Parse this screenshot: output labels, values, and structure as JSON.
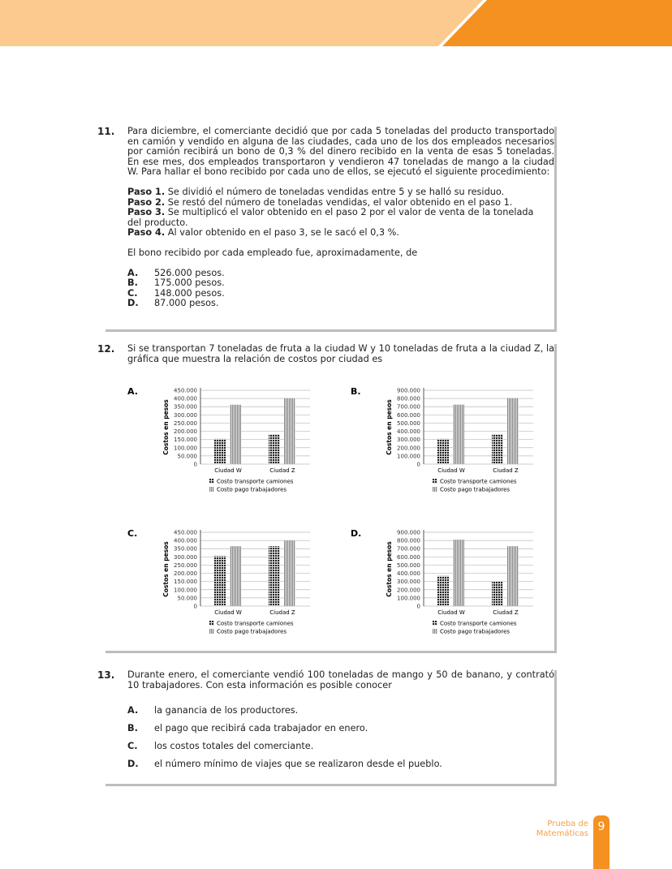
{
  "header": {
    "colors": {
      "band": "#fcc98e",
      "accent": "#f59120"
    }
  },
  "q11": {
    "number": "11.",
    "text": "Para diciembre, el comerciante decidió que por cada 5 toneladas del producto transportado en camión y vendido en alguna de las ciudades, cada uno de los dos empleados necesarios por camión recibirá un bono de 0,3 % del dinero recibido en la venta de esas 5 toneladas. En ese mes, dos empleados transportaron y vendieron 47 toneladas de mango a la ciudad W. Para hallar el bono recibido por cada uno de ellos, se ejecutó el siguiente procedimiento:",
    "steps": [
      {
        "label": "Paso 1.",
        "text": "Se dividió el número de toneladas vendidas entre 5 y se halló su residuo."
      },
      {
        "label": "Paso 2.",
        "text": "Se restó del número de toneladas vendidas, el valor obtenido en el paso 1."
      },
      {
        "label": "Paso 3.",
        "text": "Se multiplicó el valor obtenido en el paso 2 por el valor de venta de la tonelada del producto."
      },
      {
        "label": "Paso 4.",
        "text": "Al valor obtenido en el paso 3, se le sacó el 0,3 %."
      }
    ],
    "question": "El bono recibido por cada empleado fue, aproximadamente, de",
    "options": [
      {
        "letter": "A.",
        "text": "526.000 pesos."
      },
      {
        "letter": "B.",
        "text": "175.000 pesos."
      },
      {
        "letter": "C.",
        "text": "148.000 pesos."
      },
      {
        "letter": "D.",
        "text": "87.000 pesos."
      }
    ]
  },
  "q12": {
    "number": "12.",
    "text": "Si se transportan 7 toneladas de fruta a la ciudad W y 10 toneladas de fruta a la ciudad Z, la gráfica que muestra la relación de costos por ciudad es"
  },
  "chart_data": [
    {
      "option": "A.",
      "type": "bar",
      "categories": [
        "Ciudad W",
        "Ciudad Z"
      ],
      "ylabel": "Costos en pesos",
      "ylim": [
        0,
        450000
      ],
      "yticks": [
        "0",
        "50.000",
        "100.000",
        "150.000",
        "200.000",
        "250.000",
        "300.000",
        "350.000",
        "400.000",
        "450.000"
      ],
      "grid": true,
      "legend": "bottom",
      "series": [
        {
          "name": "Costo transporte camiones",
          "values": [
            154000,
            182000
          ]
        },
        {
          "name": "Costo pago trabajadores",
          "values": [
            362000,
            402000
          ]
        }
      ]
    },
    {
      "option": "B.",
      "type": "bar",
      "categories": [
        "Ciudad W",
        "Ciudad Z"
      ],
      "ylabel": "Costos en pesos",
      "ylim": [
        0,
        900000
      ],
      "yticks": [
        "0",
        "100.000",
        "200.000",
        "300.000",
        "400.000",
        "500.000",
        "600.000",
        "700.000",
        "800.000",
        "900.000"
      ],
      "grid": true,
      "legend": "bottom",
      "series": [
        {
          "name": "Costo transporte camiones",
          "values": [
            308000,
            365000
          ]
        },
        {
          "name": "Costo pago trabajadores",
          "values": [
            725000,
            805000
          ]
        }
      ]
    },
    {
      "option": "C.",
      "type": "bar",
      "categories": [
        "Ciudad W",
        "Ciudad Z"
      ],
      "ylabel": "Costos en pesos",
      "ylim": [
        0,
        450000
      ],
      "yticks": [
        "0",
        "50.000",
        "100.000",
        "150.000",
        "200.000",
        "250.000",
        "300.000",
        "350.000",
        "400.000",
        "450.000"
      ],
      "grid": true,
      "legend": "bottom",
      "series": [
        {
          "name": "Costo transporte camiones",
          "values": [
            305000,
            365000
          ]
        },
        {
          "name": "Costo pago trabajadores",
          "values": [
            365000,
            400000
          ]
        }
      ]
    },
    {
      "option": "D.",
      "type": "bar",
      "categories": [
        "Ciudad W",
        "Ciudad Z"
      ],
      "ylabel": "Costos en pesos",
      "ylim": [
        0,
        900000
      ],
      "yticks": [
        "0",
        "100.000",
        "200.000",
        "300.000",
        "400.000",
        "500.000",
        "600.000",
        "700.000",
        "800.000",
        "900.000"
      ],
      "grid": true,
      "legend": "bottom",
      "series": [
        {
          "name": "Costo transporte camiones",
          "values": [
            368000,
            305000
          ]
        },
        {
          "name": "Costo pago trabajadores",
          "values": [
            810000,
            730000
          ]
        }
      ]
    }
  ],
  "q13": {
    "number": "13.",
    "text": "Durante enero, el comerciante vendió 100 toneladas de mango y 50 de banano, y contrató 10 trabajadores. Con esta información es posible conocer",
    "options": [
      {
        "letter": "A.",
        "text": "la ganancia de los productores."
      },
      {
        "letter": "B.",
        "text": "el pago que recibirá cada trabajador en enero."
      },
      {
        "letter": "C.",
        "text": "los costos totales del comerciante."
      },
      {
        "letter": "D.",
        "text": "el número mínimo de viajes que se realizaron desde el pueblo."
      }
    ]
  },
  "footer": {
    "line1": "Prueba de",
    "line2": "Matemáticas",
    "page": "9"
  }
}
